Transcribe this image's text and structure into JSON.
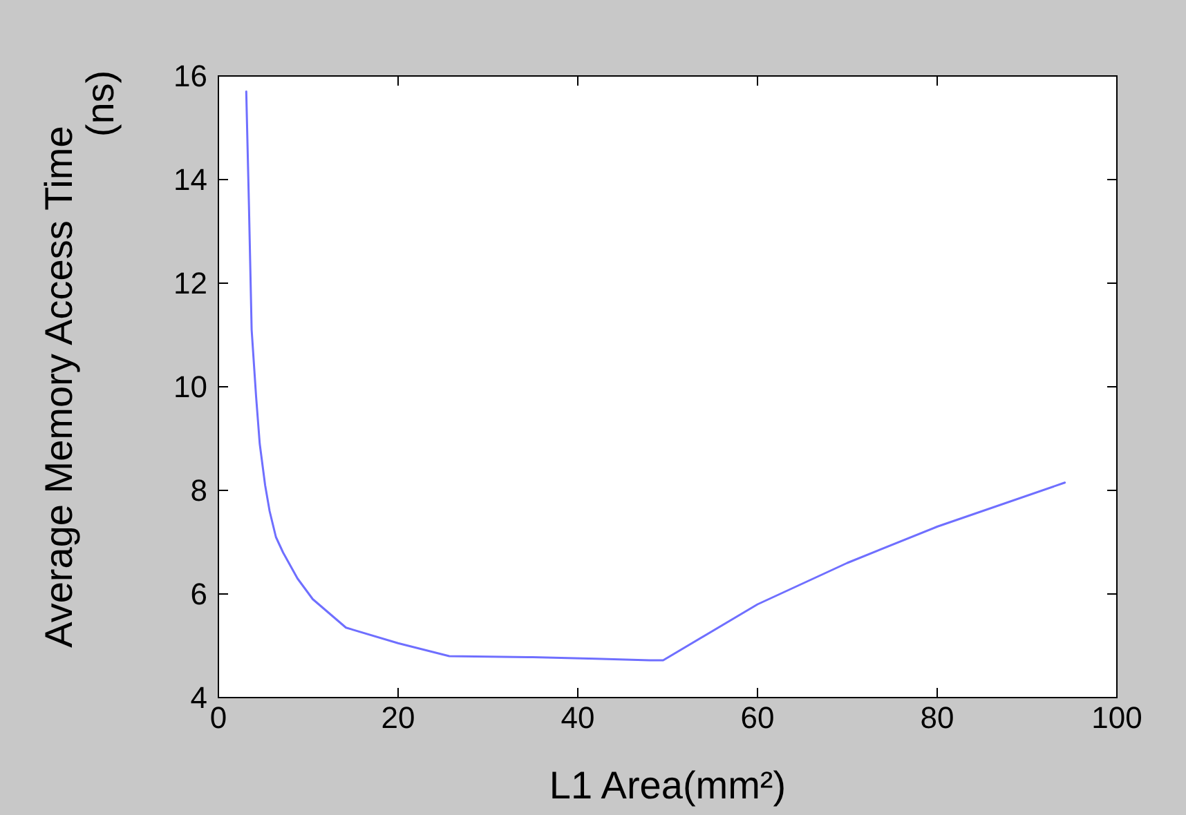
{
  "chart_data": {
    "type": "line",
    "xlabel": "L1 Area(mm²)",
    "ylabel": "Average Memory Access Time (ns)",
    "x": [
      3.1,
      3.4,
      3.7,
      4.2,
      4.6,
      5.2,
      5.7,
      6.4,
      7.2,
      8.8,
      10.5,
      14.2,
      20,
      25.7,
      35,
      42,
      48,
      49.5,
      60,
      70,
      80,
      94.2
    ],
    "series": [
      {
        "color": "#6f6fff",
        "values": [
          15.7,
          13.5,
          11.1,
          9.8,
          8.9,
          8.1,
          7.6,
          7.1,
          6.8,
          6.3,
          5.9,
          5.35,
          5.05,
          4.8,
          4.78,
          4.75,
          4.72,
          4.72,
          5.8,
          6.6,
          7.3,
          8.15
        ]
      }
    ],
    "xlim": [
      0,
      100
    ],
    "ylim": [
      4,
      16
    ],
    "xticks": [
      0,
      20,
      40,
      60,
      80,
      100
    ],
    "yticks": [
      4,
      6,
      8,
      10,
      12,
      14,
      16
    ],
    "grid": false,
    "marker": "none",
    "line_style": "solid"
  }
}
